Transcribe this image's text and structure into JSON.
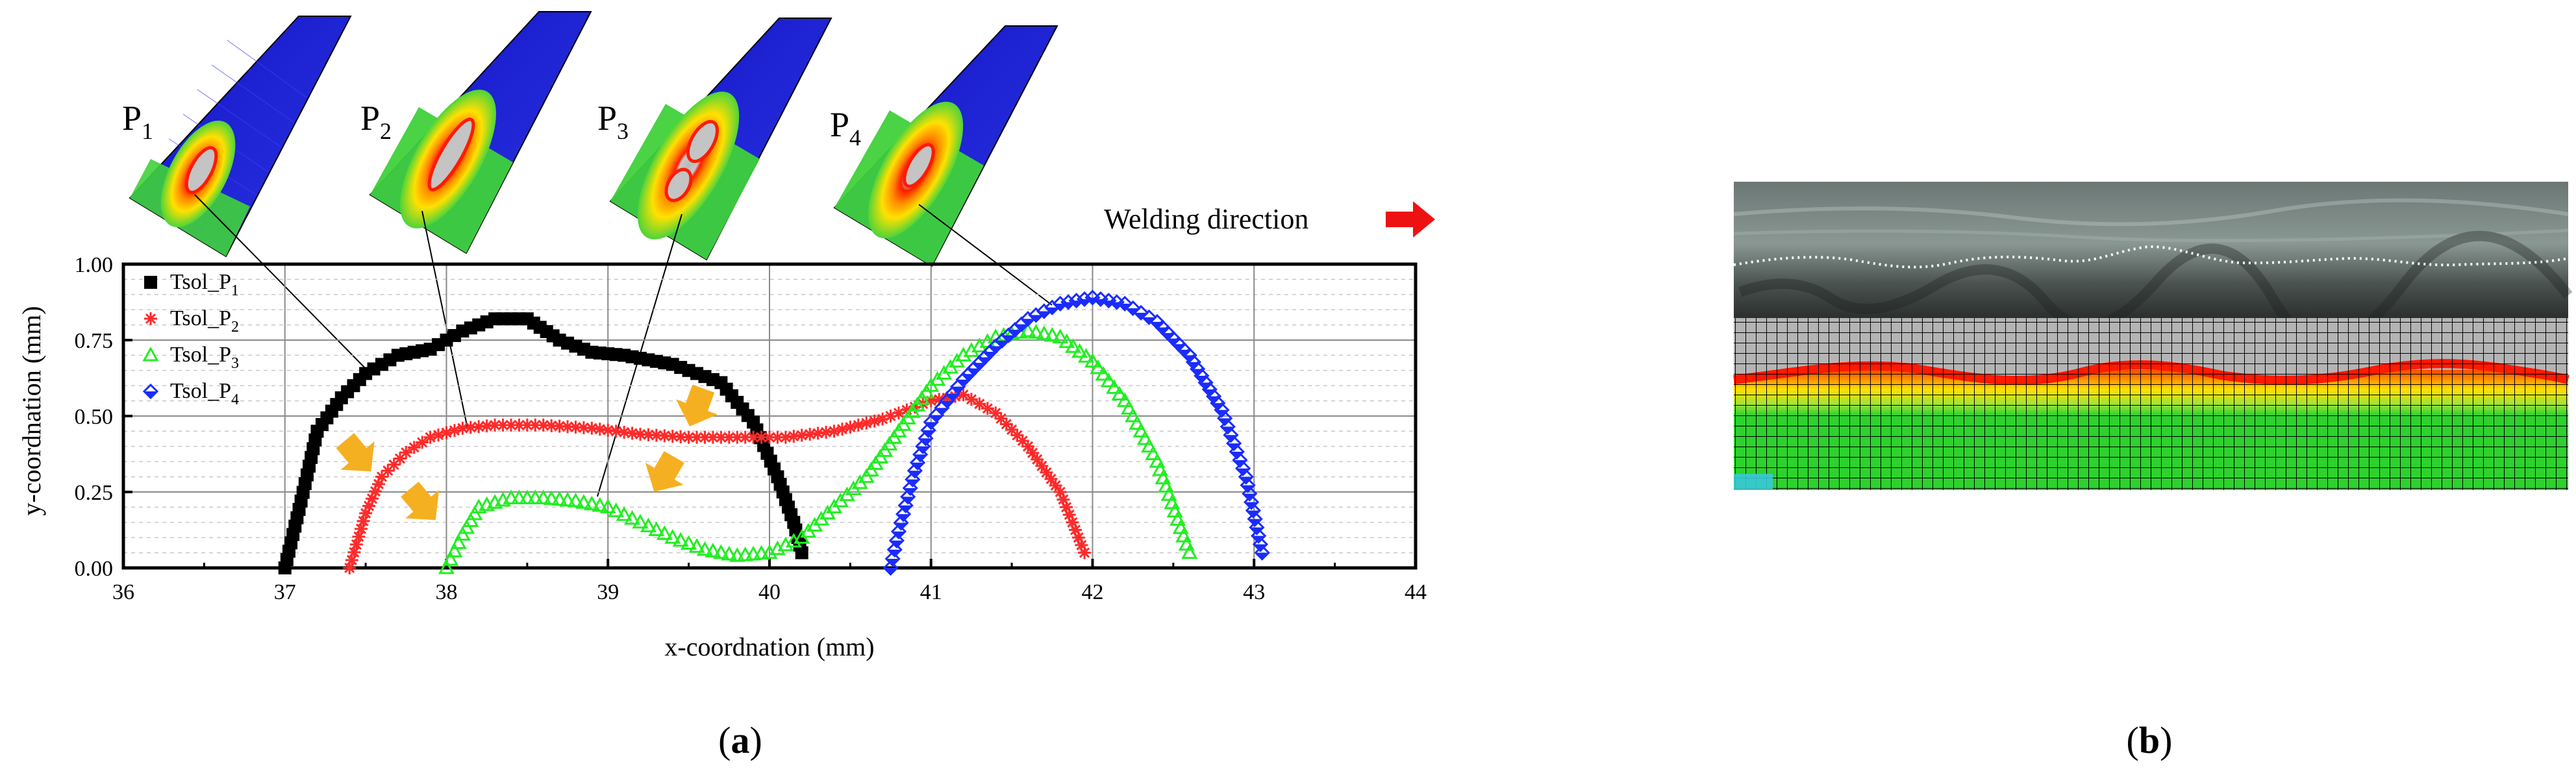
{
  "chart_data": {
    "type": "scatter",
    "xlabel": "x-coordnation (mm)",
    "ylabel": "y-coordnation (mm)",
    "xlim": [
      36,
      44
    ],
    "ylim": [
      0,
      1.0
    ],
    "x_ticks": [
      "36",
      "37",
      "38",
      "39",
      "40",
      "41",
      "42",
      "43",
      "44"
    ],
    "y_ticks": [
      "0.00",
      "0.25",
      "0.50",
      "0.75",
      "1.00"
    ],
    "grid": true,
    "legend_placement": "top-left",
    "series": [
      {
        "name": "Tsol_P1",
        "legend_main": "Tsol_P",
        "legend_sub": "1",
        "color": "#000000",
        "marker": "square",
        "x": [
          37.0,
          37.1,
          37.2,
          37.35,
          37.5,
          37.7,
          37.9,
          38.1,
          38.3,
          38.5,
          38.7,
          38.9,
          39.1,
          39.4,
          39.7,
          39.9,
          40.05,
          40.15,
          40.2
        ],
        "y": [
          0.0,
          0.22,
          0.45,
          0.56,
          0.64,
          0.7,
          0.72,
          0.78,
          0.82,
          0.82,
          0.75,
          0.71,
          0.7,
          0.67,
          0.61,
          0.48,
          0.3,
          0.15,
          0.05
        ]
      },
      {
        "name": "Tsol_P2",
        "legend_main": "Tsol_P",
        "legend_sub": "2",
        "color": "#ff2a2a",
        "marker": "star",
        "x": [
          37.4,
          37.5,
          37.6,
          37.75,
          37.9,
          38.1,
          38.3,
          38.6,
          38.9,
          39.2,
          39.5,
          39.8,
          40.1,
          40.4,
          40.7,
          41.0,
          41.2,
          41.4,
          41.6,
          41.8,
          41.95
        ],
        "y": [
          0.0,
          0.18,
          0.3,
          0.38,
          0.43,
          0.46,
          0.47,
          0.47,
          0.46,
          0.44,
          0.43,
          0.43,
          0.43,
          0.45,
          0.49,
          0.55,
          0.57,
          0.51,
          0.4,
          0.25,
          0.05
        ]
      },
      {
        "name": "Tsol_P3",
        "legend_main": "Tsol_P",
        "legend_sub": "3",
        "color": "#22ee22",
        "marker": "triangle",
        "x": [
          38.0,
          38.1,
          38.2,
          38.4,
          38.6,
          38.8,
          39.0,
          39.2,
          39.4,
          39.6,
          39.8,
          40.0,
          40.2,
          40.4,
          40.6,
          40.8,
          41.0,
          41.2,
          41.4,
          41.6,
          41.8,
          42.0,
          42.2,
          42.4,
          42.6
        ],
        "y": [
          0.0,
          0.11,
          0.2,
          0.23,
          0.23,
          0.22,
          0.2,
          0.15,
          0.1,
          0.06,
          0.04,
          0.05,
          0.1,
          0.2,
          0.3,
          0.45,
          0.6,
          0.7,
          0.76,
          0.78,
          0.76,
          0.68,
          0.55,
          0.35,
          0.05
        ]
      },
      {
        "name": "Tsol_P4",
        "legend_main": "Tsol_P",
        "legend_sub": "4",
        "color": "#1a2cff",
        "marker": "diamond",
        "x": [
          40.75,
          40.8,
          40.9,
          41.0,
          41.2,
          41.4,
          41.6,
          41.8,
          42.0,
          42.2,
          42.4,
          42.6,
          42.8,
          42.95,
          43.05
        ],
        "y": [
          0.0,
          0.12,
          0.32,
          0.48,
          0.62,
          0.73,
          0.82,
          0.87,
          0.89,
          0.87,
          0.81,
          0.7,
          0.52,
          0.3,
          0.05
        ]
      }
    ]
  },
  "insets": [
    {
      "label_main": "P",
      "label_sub": "1"
    },
    {
      "label_main": "P",
      "label_sub": "2"
    },
    {
      "label_main": "P",
      "label_sub": "3"
    },
    {
      "label_main": "P",
      "label_sub": "4"
    }
  ],
  "annotation": {
    "welding_direction": "Welding direction",
    "arrow_color": "#ee1111"
  },
  "highlight_arrow_color": "#f5b021",
  "captions": {
    "a": "a",
    "b": "b"
  }
}
